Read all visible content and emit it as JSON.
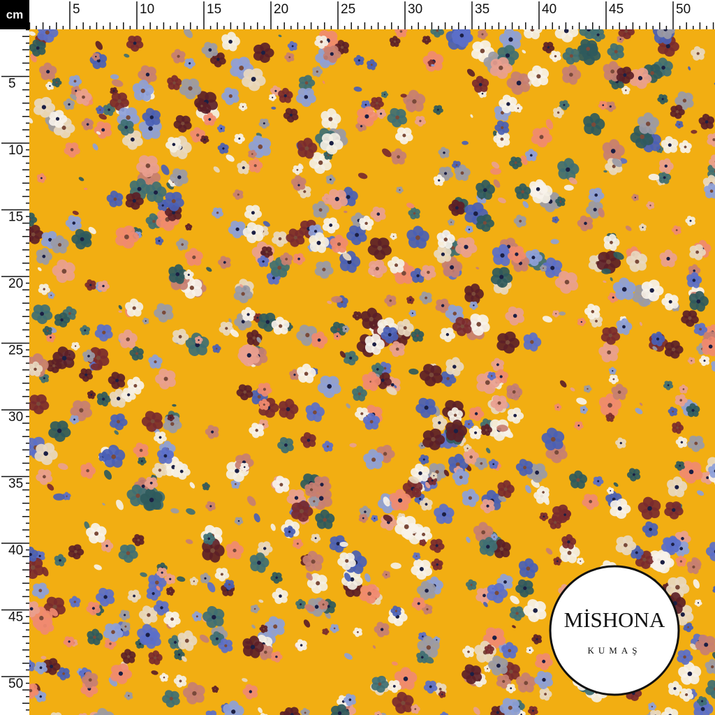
{
  "ruler": {
    "unit": "cm",
    "top": [
      5,
      10,
      15,
      20,
      25,
      30,
      35,
      40,
      45,
      50
    ],
    "left": [
      5,
      10,
      15,
      20,
      25,
      30,
      35,
      40,
      45,
      50
    ]
  },
  "logo": {
    "brand": "MİSHONA",
    "subtitle": "KUMAŞ"
  }
}
